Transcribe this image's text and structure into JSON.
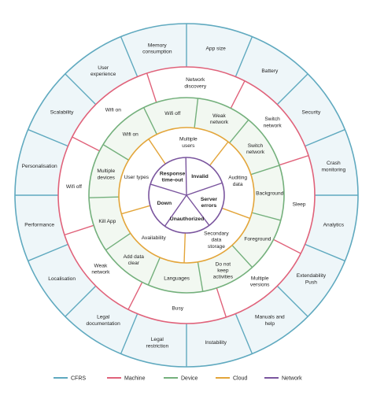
{
  "rings": [
    {
      "key": "cfrs",
      "name": "CFRS",
      "color": "#5fa9bf",
      "fill": "#eef6f9",
      "segments": [
        "Memory consumption",
        "App size",
        "Battery",
        "Security",
        "Crash monitoring",
        "Analytics",
        "Extendability Push",
        "Manuals and help",
        "Instability",
        "Legal restriction",
        "Legal documentation",
        "Localisation",
        "Performance",
        "Personalisation",
        "Scalability",
        "User experience"
      ]
    },
    {
      "key": "machine",
      "name": "Machine",
      "color": "#e0627a",
      "fill": "#ffffff",
      "segments": [
        "Network discovery",
        "Switch network",
        "Sleep",
        "Multiple versions",
        "Busy",
        "Weak network",
        "Wifi off",
        "Wifi on"
      ]
    },
    {
      "key": "device",
      "name": "Device",
      "color": "#74b07c",
      "fill": "#f2f8f1",
      "segments": [
        "Wifi off",
        "Weak network",
        "Switch network",
        "Background",
        "Foreground",
        "Do not keep activities",
        "Languages",
        "Add data clear",
        "Kill App",
        "Multiple devices",
        "Wifi on"
      ]
    },
    {
      "key": "cloud",
      "name": "Cloud",
      "color": "#e3a53a",
      "fill": "#ffffff",
      "segments": [
        "Multiple users",
        "Auditing data",
        "Secondary data storage",
        "Availability",
        "User types"
      ]
    },
    {
      "key": "network",
      "name": "Network",
      "color": "#7a559e",
      "fill": "#ffffff",
      "segments": [
        "Invalid",
        "Server errors",
        "Unauthorized",
        "Down",
        "Response time-out"
      ]
    }
  ],
  "legend": [
    "CFRS",
    "Machine",
    "Device",
    "Cloud",
    "Network"
  ]
}
